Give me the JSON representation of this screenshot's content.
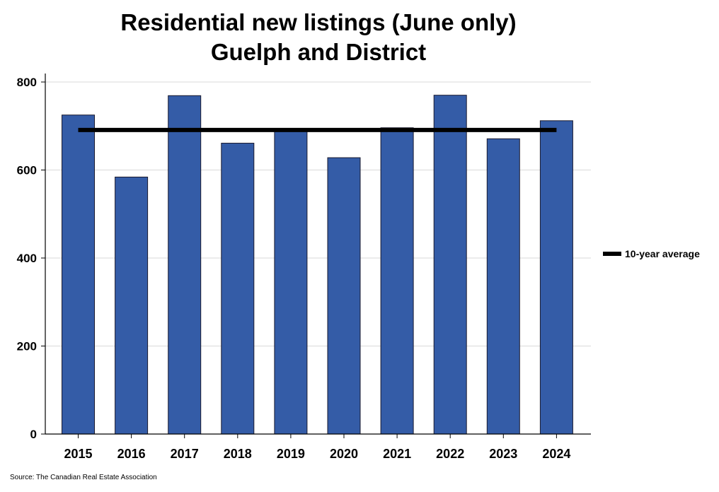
{
  "chart_data": {
    "type": "bar",
    "title": "Residential new listings (June only)",
    "subtitle": "Guelph and District",
    "categories": [
      "2015",
      "2016",
      "2017",
      "2018",
      "2019",
      "2020",
      "2021",
      "2022",
      "2023",
      "2024"
    ],
    "series": [
      {
        "name": "Residential new listings",
        "values": [
          725,
          584,
          769,
          661,
          692,
          628,
          696,
          770,
          671,
          712
        ]
      },
      {
        "name": "10-year average",
        "type": "line",
        "value": 691
      }
    ],
    "ylim": [
      0,
      800
    ],
    "yticks": [
      0,
      200,
      400,
      600,
      800
    ],
    "grid": true,
    "legend_position": "right",
    "xlabel": "",
    "ylabel": ""
  },
  "colors": {
    "bar": "#345ca7",
    "bar_edge": "#1a1a2e",
    "average_line": "#000000",
    "grid": "#d9d9d9"
  },
  "legend": {
    "label": "10-year average"
  },
  "source": "Source: The Canadian Real Estate Association"
}
